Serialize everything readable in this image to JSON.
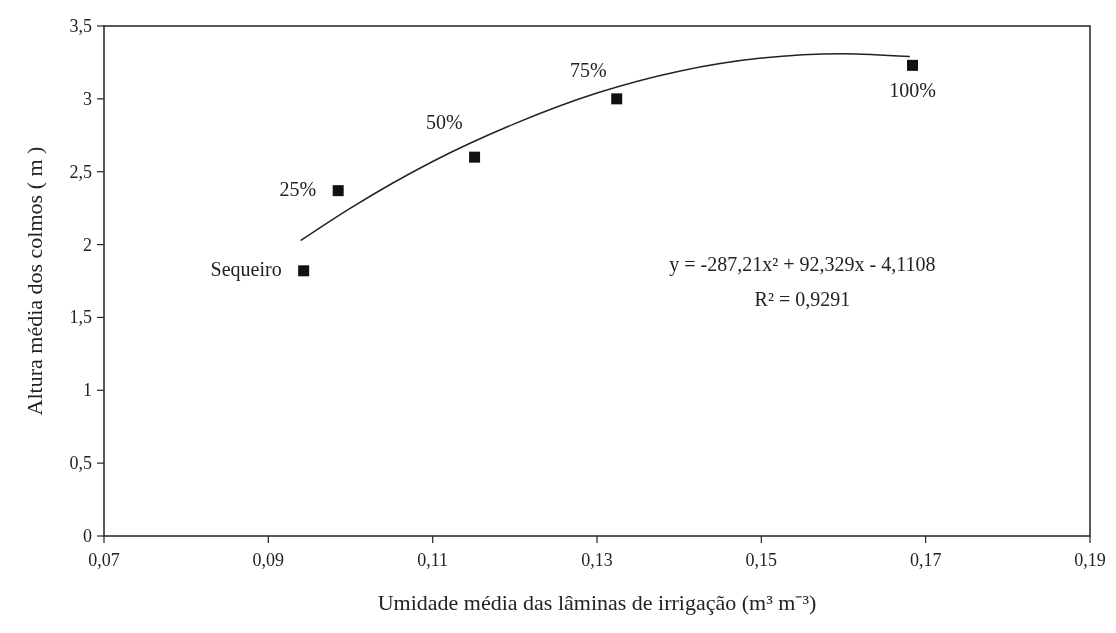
{
  "chart_data": {
    "type": "scatter",
    "xlabel": "Umidade média das lâminas de irrigação (m³ m⁻³)",
    "ylabel": "Altura média dos colmos ( m )",
    "xlim": [
      0.07,
      0.19
    ],
    "ylim": [
      0,
      3.5
    ],
    "xticks": [
      {
        "value": 0.07,
        "label": "0,07"
      },
      {
        "value": 0.09,
        "label": "0,09"
      },
      {
        "value": 0.11,
        "label": "0,11"
      },
      {
        "value": 0.13,
        "label": "0,13"
      },
      {
        "value": 0.15,
        "label": "0,15"
      },
      {
        "value": 0.17,
        "label": "0,17"
      },
      {
        "value": 0.19,
        "label": "0,19"
      }
    ],
    "yticks": [
      0,
      {
        "value": 0.5,
        "label": "0,5"
      },
      1,
      {
        "value": 1.5,
        "label": "1,5"
      },
      2,
      {
        "value": 2.5,
        "label": "2,5"
      },
      3,
      {
        "value": 3.5,
        "label": "3,5"
      }
    ],
    "marker": "square",
    "grid": false,
    "series": [
      {
        "color": "#111111",
        "x": [
          0.0943,
          0.0985,
          0.1151,
          0.1324,
          0.1684
        ],
        "values": [
          1.82,
          2.37,
          2.6,
          3.0,
          3.23
        ]
      },
      {
        "type": "line",
        "color": "#222222",
        "marker": "none",
        "line_style": "solid",
        "x": [
          0.094,
          0.1,
          0.11,
          0.12,
          0.13,
          0.14,
          0.15,
          0.16,
          0.168
        ],
        "values": [
          2.03,
          2.25,
          2.57,
          2.83,
          3.04,
          3.19,
          3.28,
          3.31,
          3.29
        ]
      }
    ],
    "annotations": [
      {
        "text": "Sequeiro",
        "x": 0.0943,
        "y": 1.82
      },
      {
        "text": "25%",
        "x": 0.0985,
        "y": 2.37
      },
      {
        "text": "50%",
        "x": 0.1151,
        "y": 2.6
      },
      {
        "text": "75%",
        "x": 0.1324,
        "y": 3.0
      },
      {
        "text": "100%",
        "x": 0.1684,
        "y": 3.23
      },
      "y = -287,21x² + 92,329x - 4,1108",
      "R² = 0,9291"
    ]
  }
}
